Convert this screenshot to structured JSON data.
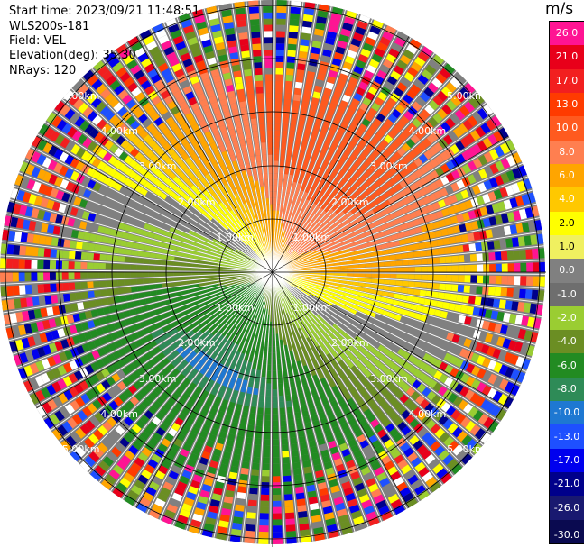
{
  "info": {
    "start_time": "Start time: 2023/09/21 11:48:51",
    "instrument": "WLS200s-181",
    "field": "Field: VEL",
    "elevation": "Elevation(deg): 35.30",
    "nrays": "NRays: 120"
  },
  "colorbar": {
    "unit": "m/s",
    "levels": [
      {
        "label": "26.0",
        "color": "#ff1493"
      },
      {
        "label": "21.0",
        "color": "#e8001a"
      },
      {
        "label": "17.0",
        "color": "#f21f1f"
      },
      {
        "label": "13.0",
        "color": "#ff3b00"
      },
      {
        "label": "10.0",
        "color": "#ff5a1f"
      },
      {
        "label": "8.0",
        "color": "#ff7f50"
      },
      {
        "label": "6.0",
        "color": "#ffa500"
      },
      {
        "label": "4.0",
        "color": "#ffc800"
      },
      {
        "label": "2.0",
        "color": "#ffff00"
      },
      {
        "label": "1.0",
        "color": "#f0f060"
      },
      {
        "label": "0.0",
        "color": "#808080"
      },
      {
        "label": "-1.0",
        "color": "#6e6e6e"
      },
      {
        "label": "-2.0",
        "color": "#9acd32"
      },
      {
        "label": "-4.0",
        "color": "#6b8e23"
      },
      {
        "label": "-6.0",
        "color": "#228b22"
      },
      {
        "label": "-8.0",
        "color": "#2e8b57"
      },
      {
        "label": "-10.0",
        "color": "#1e78d2"
      },
      {
        "label": "-13.0",
        "color": "#1e50ff"
      },
      {
        "label": "-17.0",
        "color": "#0000ee"
      },
      {
        "label": "-21.0",
        "color": "#00008b"
      },
      {
        "label": "-26.0",
        "color": "#191970"
      },
      {
        "label": "-30.0",
        "color": "#0a0a50"
      }
    ]
  },
  "ring_labels": [
    "1.00km",
    "2.00km",
    "3.00km",
    "4.00km",
    "5.00km"
  ],
  "colors": {
    "blue": "#1e78d2",
    "teal": "#2e8b57",
    "green": "#228b22",
    "olive": "#6b8e23",
    "lime": "#9acd32",
    "gray": "#808080",
    "yellow": "#ffff00",
    "gold": "#ffc800",
    "orange": "#ffa500",
    "salmon": "#ff7f50",
    "red": "#ff5a1f"
  }
}
